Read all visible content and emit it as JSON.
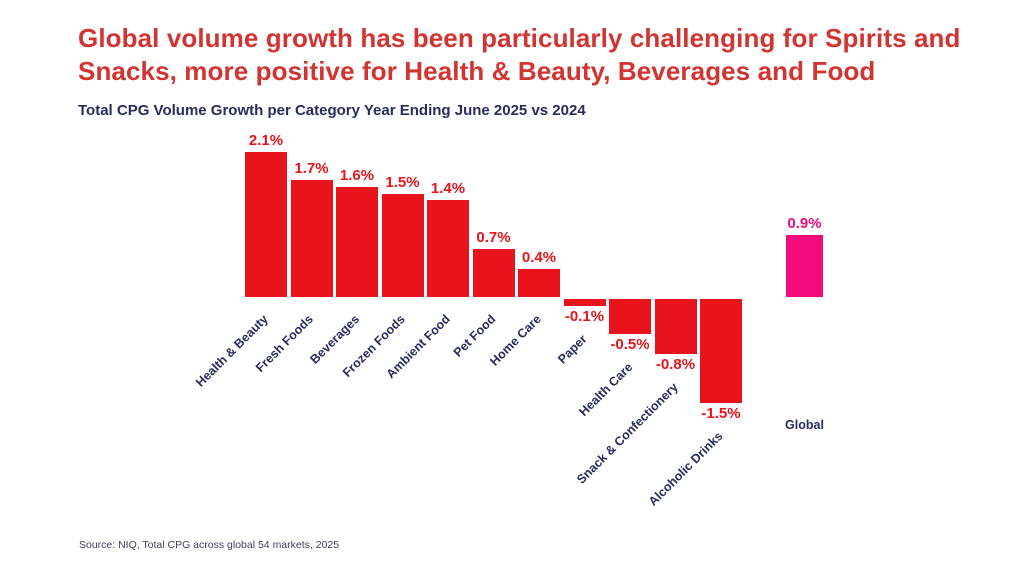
{
  "slide": {
    "title": "Global volume growth has been particularly challenging for Spirits and Snacks, more positive for Health & Beauty, Beverages and Food",
    "subtitle": "Total CPG Volume Growth per Category Year Ending June 2025 vs 2024",
    "source": "Source: NIQ, Total CPG across global 54 markets, 2025"
  },
  "colors": {
    "title_red": "#D23431",
    "bar_red": "#E8131B",
    "global_pink": "#F30B7E",
    "navy": "#272C5D"
  },
  "chart_data": {
    "type": "bar",
    "title": "Total CPG Volume Growth per Category Year Ending June 2025 vs 2024",
    "categories": [
      "Health & Beauty",
      "Fresh Foods",
      "Beverages",
      "Frozen Foods",
      "Ambient Food",
      "Pet Food",
      "Home Care",
      "Paper",
      "Health Care",
      "Snack & Confectionery",
      "Alcoholic Drinks"
    ],
    "values": [
      2.1,
      1.7,
      1.6,
      1.5,
      1.4,
      0.7,
      0.4,
      -0.1,
      -0.5,
      -0.8,
      -1.5
    ],
    "value_suffix": "%",
    "bar_color": "#E8131B",
    "label_color": "#E8131B",
    "highlight_bar": {
      "category": "Global",
      "value": 0.9,
      "color": "#F30B7E"
    },
    "xlabel": "",
    "ylabel": "",
    "ylim": [
      -1.6,
      2.2
    ],
    "grid": false,
    "legend": "none",
    "value_labels": "shown at bar ends",
    "category_label_rotation_deg": 45
  }
}
